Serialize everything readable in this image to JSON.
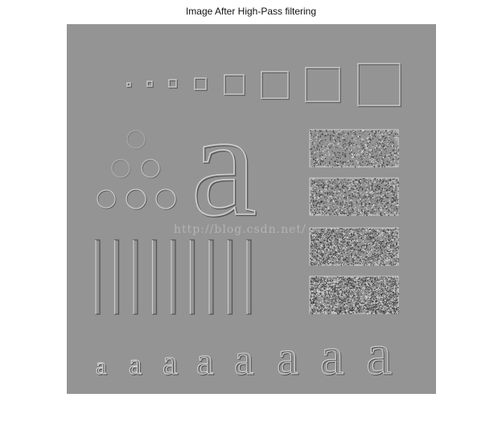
{
  "figure": {
    "title": "Image After High-Pass filtering",
    "watermark": "http://blog.csdn.net/"
  },
  "image": {
    "background_color": "#949494",
    "edge_highlight": "#cfcfcf",
    "edge_shadow": "#555555",
    "noise_colors": [
      "#3a3a3a",
      "#d8d8d8",
      "#6a6a6a"
    ],
    "letter_glyph": "a",
    "square_count": 8,
    "circle_count": 6,
    "bar_count": 9,
    "noise_panel_count": 4,
    "small_letter_count": 8
  }
}
